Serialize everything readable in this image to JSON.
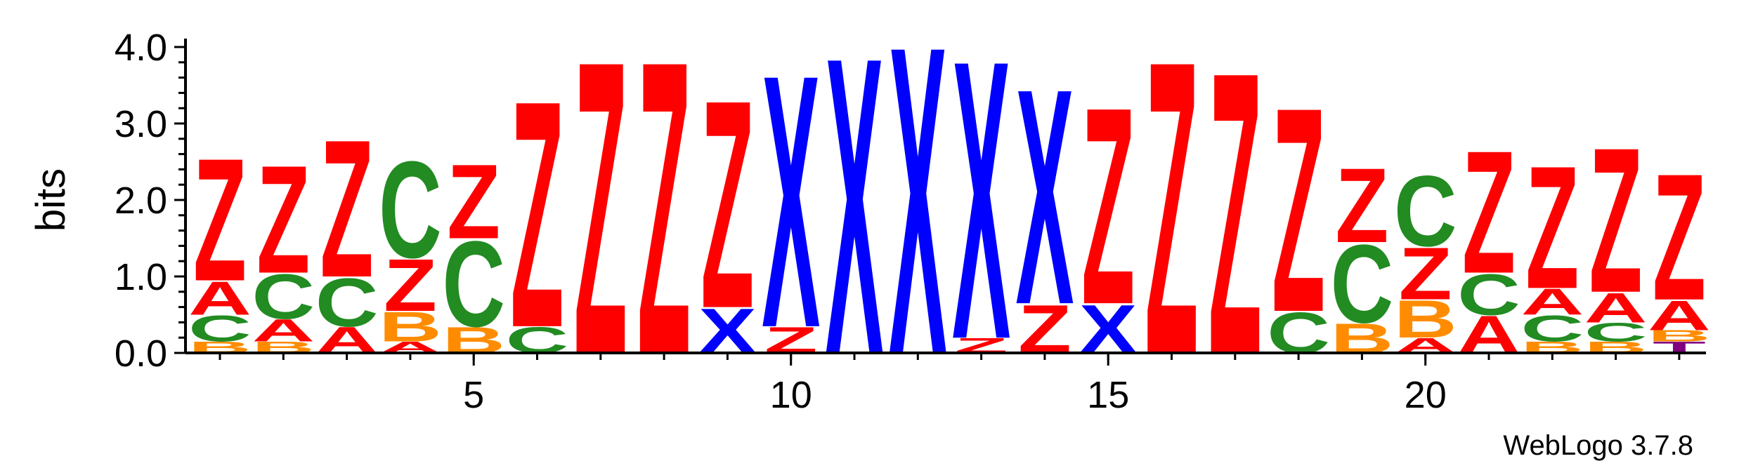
{
  "chart_data": {
    "type": "sequence-logo",
    "ylabel": "bits",
    "ylim": [
      0,
      4.0
    ],
    "y_ticks": [
      "0.0",
      "1.0",
      "2.0",
      "3.0",
      "4.0"
    ],
    "x_ticks": [
      "5",
      "10",
      "15",
      "20"
    ],
    "x_tick_values": [
      5,
      10,
      15,
      20
    ],
    "footer": "WebLogo 3.7.8",
    "colors": {
      "A": "#ff0000",
      "Z": "#ff0000",
      "C": "#228b22",
      "B": "#ff8c00",
      "X": "#0000ff",
      "T": "#800080"
    },
    "positions": [
      {
        "pos": 1,
        "stack": [
          [
            "B",
            0.15
          ],
          [
            "C",
            0.35
          ],
          [
            "A",
            0.45
          ],
          [
            "Z",
            1.65
          ]
        ]
      },
      {
        "pos": 2,
        "stack": [
          [
            "B",
            0.15
          ],
          [
            "A",
            0.3
          ],
          [
            "C",
            0.6
          ],
          [
            "Z",
            1.45
          ]
        ]
      },
      {
        "pos": 3,
        "stack": [
          [
            "A",
            0.35
          ],
          [
            "C",
            0.65
          ],
          [
            "Z",
            1.85
          ]
        ]
      },
      {
        "pos": 4,
        "stack": [
          [
            "A",
            0.15
          ],
          [
            "B",
            0.4
          ],
          [
            "Z",
            0.7
          ],
          [
            "C",
            1.3
          ]
        ]
      },
      {
        "pos": 5,
        "stack": [
          [
            "B",
            0.35
          ],
          [
            "C",
            1.15
          ],
          [
            "Z",
            1.0
          ]
        ]
      },
      {
        "pos": 6,
        "stack": [
          [
            "C",
            0.35
          ],
          [
            "Z",
            3.05
          ]
        ]
      },
      {
        "pos": 7,
        "stack": [
          [
            "Z",
            3.95
          ]
        ]
      },
      {
        "pos": 8,
        "stack": [
          [
            "Z",
            3.95
          ]
        ]
      },
      {
        "pos": 9,
        "stack": [
          [
            "X",
            0.6
          ],
          [
            "Z",
            2.8
          ]
        ]
      },
      {
        "pos": 10,
        "stack": [
          [
            "Z",
            0.35
          ],
          [
            "X",
            3.4
          ]
        ]
      },
      {
        "pos": 11,
        "stack": [
          [
            "X",
            4.0
          ]
        ]
      },
      {
        "pos": 12,
        "stack": [
          [
            "X",
            4.15
          ]
        ]
      },
      {
        "pos": 13,
        "stack": [
          [
            "Z",
            0.2
          ],
          [
            "X",
            3.75
          ]
        ]
      },
      {
        "pos": 14,
        "stack": [
          [
            "Z",
            0.65
          ],
          [
            "X",
            2.9
          ]
        ]
      },
      {
        "pos": 15,
        "stack": [
          [
            "X",
            0.65
          ],
          [
            "Z",
            2.65
          ]
        ]
      },
      {
        "pos": 16,
        "stack": [
          [
            "Z",
            3.95
          ]
        ]
      },
      {
        "pos": 17,
        "stack": [
          [
            "Z",
            3.8
          ]
        ]
      },
      {
        "pos": 18,
        "stack": [
          [
            "C",
            0.55
          ],
          [
            "Z",
            2.75
          ]
        ]
      },
      {
        "pos": 19,
        "stack": [
          [
            "B",
            0.4
          ],
          [
            "C",
            1.05
          ],
          [
            "Z",
            1.0
          ]
        ]
      },
      {
        "pos": 20,
        "stack": [
          [
            "A",
            0.2
          ],
          [
            "B",
            0.5
          ],
          [
            "Z",
            0.7
          ],
          [
            "C",
            0.95
          ]
        ]
      },
      {
        "pos": 21,
        "stack": [
          [
            "A",
            0.5
          ],
          [
            "C",
            0.55
          ],
          [
            "Z",
            1.65
          ]
        ]
      },
      {
        "pos": 22,
        "stack": [
          [
            "B",
            0.15
          ],
          [
            "C",
            0.35
          ],
          [
            "A",
            0.35
          ],
          [
            "Z",
            1.65
          ]
        ]
      },
      {
        "pos": 23,
        "stack": [
          [
            "B",
            0.15
          ],
          [
            "C",
            0.25
          ],
          [
            "A",
            0.4
          ],
          [
            "Z",
            1.95
          ]
        ]
      },
      {
        "pos": 24,
        "stack": [
          [
            "T",
            0.15
          ],
          [
            "B",
            0.15
          ],
          [
            "A",
            0.4
          ],
          [
            "Z",
            1.7
          ]
        ]
      }
    ]
  }
}
